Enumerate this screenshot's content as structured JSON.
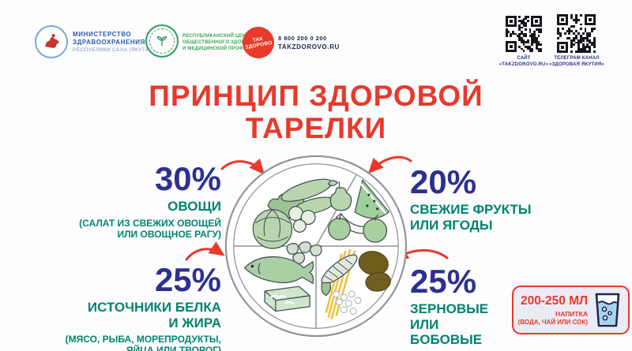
{
  "colors": {
    "accent_red": "#e8392b",
    "percent_blue": "#2c3190",
    "text_green": "#00846f",
    "logo_green": "#3aa655",
    "logo_blue": "#2b5ca8",
    "navy": "#1d2550",
    "plate_outline": "#8e939b",
    "food_green": "#b7d6ae",
    "spaghetti_yellow": "#ecc23d",
    "potato_brown": "#6f5d1e",
    "water_blue": "#a8d4f2",
    "drink_box_bg": "#ebebf4"
  },
  "header": {
    "ministry": {
      "lines": [
        "МИНИСТЕРСТВО",
        "ЗДРАВООХРАНЕНИЯ",
        "РЕСПУБЛИКИ САХА (ЯКУТИЯ)"
      ]
    },
    "health_center": {
      "lines": [
        "РЕСПУБЛИКАНСКИЙ ЦЕНТР",
        "ОБЩЕСТВЕННОГО ЗДОРОВЬЯ",
        "И МЕДИЦИНСКОЙ ПРОФИЛАКТИКИ"
      ]
    },
    "takzdorovo": {
      "badge_lines": [
        "ТАК",
        "ЗДОРОВО"
      ],
      "phone": "8 800 200 0 200",
      "site": "TAKZDOROVO.RU"
    },
    "qr_site": {
      "caption_lines": [
        "САЙТ",
        "«TAKZDOROVO.RU»"
      ]
    },
    "qr_telegram": {
      "caption_lines": [
        "ТЕЛЕГРАМ КАНАЛ",
        "«ЗДОРОВАЯ ЯКУТИЯ»"
      ]
    }
  },
  "title": {
    "line1": "ПРИНЦИП ЗДОРОВОЙ",
    "line2": "ТАРЕЛКИ"
  },
  "sections": {
    "vegetables": {
      "percent": "30%",
      "title": "ОВОЩИ",
      "subtitle_line1": "(САЛАТ ИЗ СВЕЖИХ ОВОЩЕЙ",
      "subtitle_line2": "ИЛИ ОВОЩНОЕ РАГУ)",
      "plate_items": [
        "cabbage",
        "cucumber",
        "cucumber-slices",
        "leafy-greens"
      ]
    },
    "fruits": {
      "percent": "20%",
      "title_line1": "СВЕЖИЕ ФРУКТЫ",
      "title_line2": "ИЛИ ЯГОДЫ",
      "plate_items": [
        "pear",
        "watermelon-slice",
        "apples",
        "bananas"
      ]
    },
    "protein": {
      "percent": "25%",
      "title_line1": "ИСТОЧНИКИ БЕЛКА",
      "title_line2": "И ЖИРА",
      "subtitle_line1": "(МЯСО, РЫБА, МОРЕПРОДУКТЫ,",
      "subtitle_line2": "ЯЙЦА ИЛИ ТВОРОГ)",
      "plate_items": [
        "fish",
        "shrimp",
        "cheese"
      ]
    },
    "grains": {
      "percent": "25%",
      "title_line1": "ЗЕРНОВЫЕ",
      "title_line2": "ИЛИ",
      "title_line3": "БОБОВЫЕ",
      "plate_items": [
        "corn",
        "spaghetti",
        "potatoes",
        "rice"
      ]
    }
  },
  "drink_box": {
    "amount": "200-250 МЛ",
    "label": "НАПИТКА",
    "sublabel": "(ВОДА, ЧАЙ ИЛИ СОК)"
  }
}
